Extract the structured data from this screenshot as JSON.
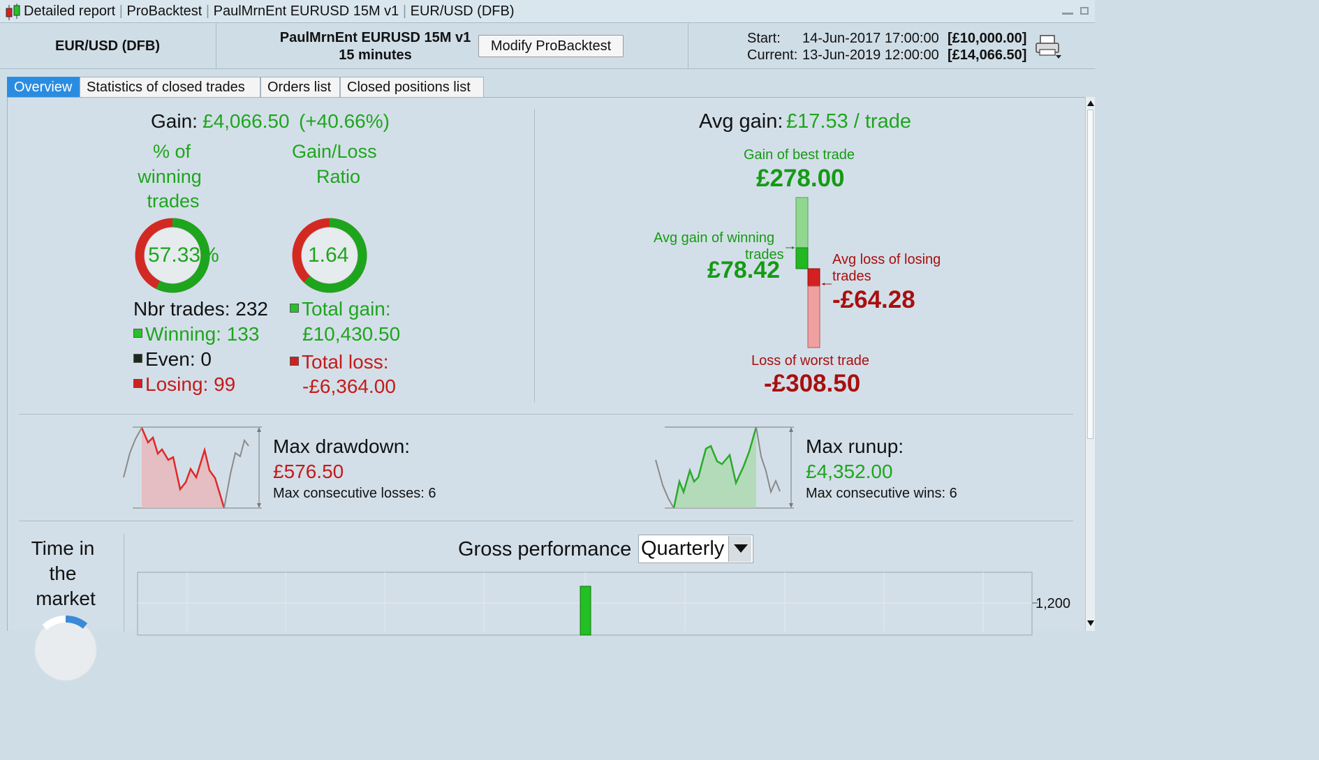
{
  "window": {
    "title": "Detailed report",
    "app": "ProBacktest",
    "system": "PaulMrnEnt EURUSD 15M v1",
    "instrument": "EUR/USD (DFB)"
  },
  "header": {
    "instrument": "EUR/USD (DFB)",
    "system_name": "PaulMrnEnt EURUSD 15M v1",
    "timeframe": "15 minutes",
    "modify_button": "Modify ProBacktest",
    "start_label": "Start:",
    "start_date": "14-Jun-2017 17:00:00",
    "start_value": "[£10,000.00]",
    "current_label": "Current:",
    "current_date": "13-Jun-2019 12:00:00",
    "current_value": "[£14,066.50]"
  },
  "tabs": [
    "Overview",
    "Statistics of closed trades",
    "Orders list",
    "Closed positions list"
  ],
  "overview": {
    "gain_label": "Gain:",
    "gain_value": "£4,066.50",
    "gain_pct": "(+40.66%)",
    "winning_title_1": "% of",
    "winning_title_2": "winning",
    "winning_title_3": "trades",
    "winning_pct": "57.33%",
    "winning_fraction": 0.5733,
    "ratio_title_1": "Gain/Loss",
    "ratio_title_2": "Ratio",
    "ratio_value": "1.64",
    "ratio_fraction": 0.621,
    "nbr_trades": "Nbr trades: 232",
    "winning": "Winning: 133",
    "even": "Even: 0",
    "losing": "Losing: 99",
    "total_gain_label": "Total gain:",
    "total_gain_value": "£10,430.50",
    "total_loss_label": "Total loss:",
    "total_loss_value": "-£6,364.00",
    "avg_gain_label": "Avg gain:",
    "avg_gain_value": "£17.53 / trade",
    "best_trade_label": "Gain of best trade",
    "best_trade_value": "£278.00",
    "avg_win_label_1": "Avg gain of winning",
    "avg_win_label_2": "trades",
    "avg_win_value": "£78.42",
    "avg_loss_label_1": "Avg loss of losing",
    "avg_loss_label_2": "trades",
    "avg_loss_value": "-£64.28",
    "worst_trade_label": "Loss of worst trade",
    "worst_trade_value": "-£308.50",
    "max_drawdown_label": "Max drawdown:",
    "max_drawdown_value": "£576.50",
    "max_consec_losses": "Max consecutive losses: 6",
    "max_runup_label": "Max runup:",
    "max_runup_value": "£4,352.00",
    "max_consec_wins": "Max consecutive wins: 6",
    "time_in_market_1": "Time in",
    "time_in_market_2": "the",
    "time_in_market_3": "market",
    "gross_performance_label": "Gross performance",
    "period_select": "Quarterly",
    "y_tick": "1,200"
  },
  "colors": {
    "green": "#1ea51e",
    "red": "#c51a1a",
    "tab_active": "#2a8ce0",
    "background": "#d3dfe8"
  }
}
